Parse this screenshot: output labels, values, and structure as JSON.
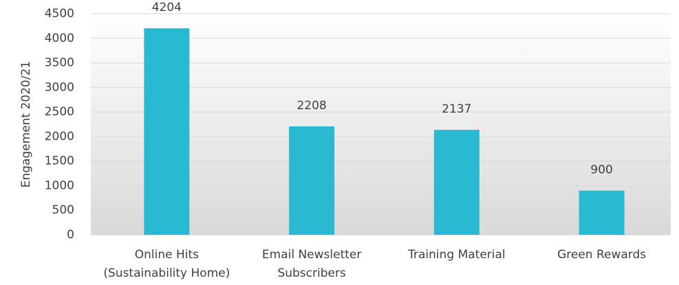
{
  "chart_data": {
    "type": "bar",
    "y_label": "Engagement 2020/21",
    "categories": [
      "Online Hits\n(Sustainability Home)",
      "Email Newsletter\nSubscribers",
      "Training Material",
      "Green Rewards"
    ],
    "values": [
      4204,
      2208,
      2137,
      900
    ],
    "color": "#29b9d1",
    "ylim": [
      0,
      4500
    ],
    "yticks": [
      0,
      500,
      1000,
      1500,
      2000,
      2500,
      3000,
      3500,
      4000,
      4500
    ],
    "grid": true
  }
}
